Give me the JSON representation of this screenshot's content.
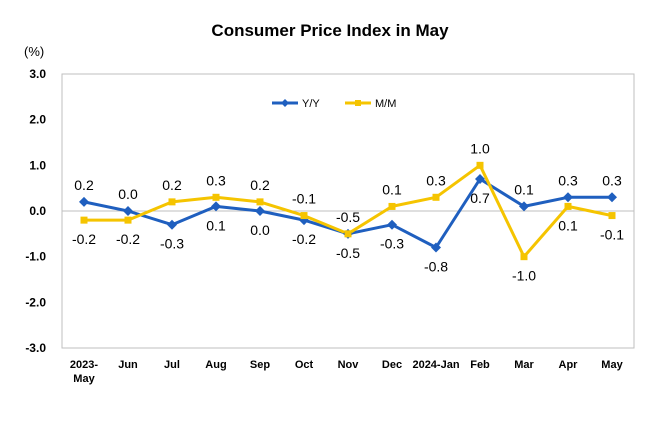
{
  "chart_data": {
    "type": "line",
    "title": "Consumer Price Index in May",
    "unit_label": "(%)",
    "categories": [
      "2023-May",
      "Jun",
      "Jul",
      "Aug",
      "Sep",
      "Oct",
      "Nov",
      "Dec",
      "2024-Jan",
      "Feb",
      "Mar",
      "Apr",
      "May"
    ],
    "ylim": [
      -3.0,
      3.0
    ],
    "yticks": [
      "3.0",
      "2.0",
      "1.0",
      "0.0",
      "-1.0",
      "-2.0",
      "-3.0"
    ],
    "grid": false,
    "legend_position": "top-center",
    "series": [
      {
        "name": "Y/Y",
        "color": "#1F5FBF",
        "marker": "diamond",
        "values": [
          0.2,
          0.0,
          -0.3,
          0.1,
          0.0,
          -0.2,
          -0.5,
          -0.3,
          -0.8,
          0.7,
          0.1,
          0.3,
          0.3
        ],
        "labels": [
          "0.2",
          "0.0",
          "-0.3",
          "0.1",
          "0.0",
          "-0.2",
          "-0.5",
          "-0.3",
          "-0.8",
          "0.7",
          "0.1",
          "0.3",
          "0.3"
        ]
      },
      {
        "name": "M/M",
        "color": "#F5C400",
        "marker": "square",
        "values": [
          -0.2,
          -0.2,
          0.2,
          0.3,
          0.2,
          -0.1,
          -0.5,
          0.1,
          0.3,
          1.0,
          -1.0,
          0.1,
          -0.1
        ],
        "labels": [
          "-0.2",
          "-0.2",
          "0.2",
          "0.3",
          "0.2",
          "-0.1",
          "-0.5",
          "0.1",
          "0.3",
          "1.0",
          "-1.0",
          "0.1",
          "-0.1"
        ]
      }
    ]
  }
}
